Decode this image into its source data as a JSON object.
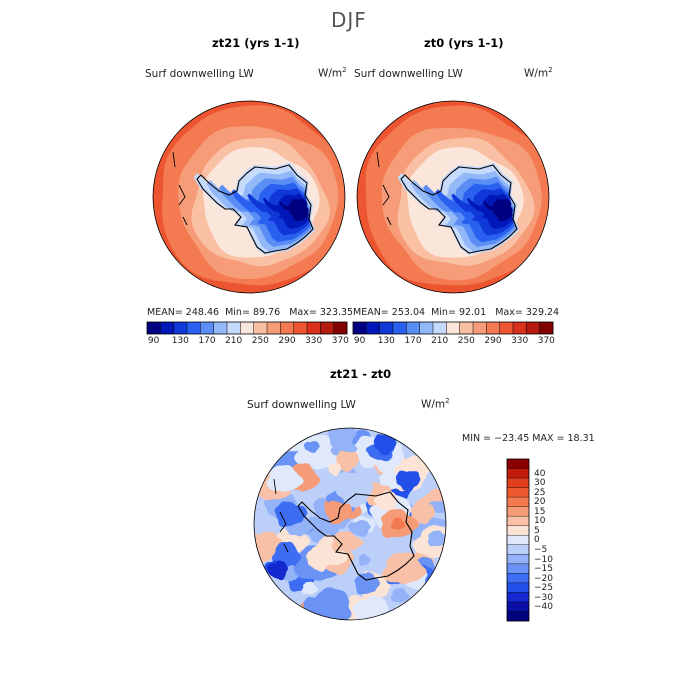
{
  "page": {
    "title": "DJF"
  },
  "colors": {
    "abs_scale": [
      "#000080",
      "#0018b8",
      "#1038d8",
      "#2a60f0",
      "#5a8ef5",
      "#93b8f8",
      "#c6dafb",
      "#fbe6db",
      "#f9c0a4",
      "#f79c78",
      "#f47a52",
      "#ed5530",
      "#d8301a",
      "#b51a10",
      "#800000"
    ],
    "diff_scale": [
      "#00007a",
      "#0a0fa6",
      "#1428cf",
      "#2450ea",
      "#3d6df2",
      "#6a93f5",
      "#93b2f8",
      "#bccff9",
      "#e0e9fb",
      "#fbe3d6",
      "#f8c0a6",
      "#f59b78",
      "#f37a50",
      "#ee5a30",
      "#e03e1a",
      "#c11b0c",
      "#8a0000"
    ],
    "land": "#ffffff",
    "coast": "#000000"
  },
  "chart_data": [
    {
      "type": "heatmap",
      "projection": "south-polar-stereographic",
      "title": "zt21 (yrs 1-1)",
      "variable": "Surf downwelling LW",
      "units": "W/m",
      "units_exp": "2",
      "stats": {
        "mean_label": "MEAN=",
        "mean": "248.46",
        "min_label": "Min=",
        "min": "89.76",
        "max_label": "Max=",
        "max": "323.35"
      },
      "colorbar_ticks": [
        "90",
        "130",
        "170",
        "210",
        "250",
        "290",
        "330",
        "370"
      ],
      "levels": [
        90,
        110,
        130,
        150,
        170,
        190,
        210,
        230,
        250,
        270,
        290,
        310,
        330,
        350,
        370
      ]
    },
    {
      "type": "heatmap",
      "projection": "south-polar-stereographic",
      "title": "zt0 (yrs 1-1)",
      "variable": "Surf downwelling LW",
      "units": "W/m",
      "units_exp": "2",
      "stats": {
        "mean_label": "MEAN=",
        "mean": "253.04",
        "min_label": "Min=",
        "min": "92.01",
        "max_label": "Max=",
        "max": "329.24"
      },
      "colorbar_ticks": [
        "90",
        "130",
        "170",
        "210",
        "250",
        "290",
        "330",
        "370"
      ],
      "levels": [
        90,
        110,
        130,
        150,
        170,
        190,
        210,
        230,
        250,
        270,
        290,
        310,
        330,
        350,
        370
      ]
    },
    {
      "type": "heatmap",
      "projection": "south-polar-stereographic",
      "title": "zt21 - zt0",
      "variable": "Surf downwelling LW",
      "units": "W/m",
      "units_exp": "2",
      "stats_text": "MIN = −23.45 MAX =  18.31",
      "colorbar_ticks": [
        "40",
        "30",
        "25",
        "20",
        "15",
        "10",
        "5",
        "0",
        "−5",
        "−10",
        "−15",
        "−20",
        "−25",
        "−30",
        "−40"
      ],
      "levels": [
        -40,
        -30,
        -25,
        -20,
        -15,
        -10,
        -5,
        0,
        5,
        10,
        15,
        20,
        25,
        30,
        40
      ]
    }
  ]
}
